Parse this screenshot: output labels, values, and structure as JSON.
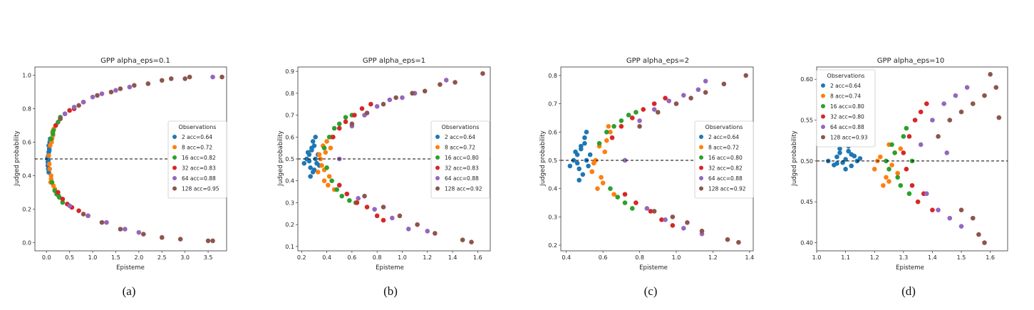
{
  "series_colors": [
    "#1f77b4",
    "#ff7f0e",
    "#2ca02c",
    "#d62728",
    "#9467bd",
    "#8c564b"
  ],
  "chart_data": [
    {
      "type": "scatter",
      "title": "GPP alpha_eps=0.1",
      "xlabel": "Episteme",
      "ylabel": "Judged probability",
      "caption": "(a)",
      "xlim": [
        -0.25,
        3.9
      ],
      "ylim": [
        -0.05,
        1.05
      ],
      "xticks": [
        "0.0",
        "0.5",
        "1.0",
        "1.5",
        "2.0",
        "2.5",
        "3.0",
        "3.5"
      ],
      "yticks": [
        "0.0",
        "0.2",
        "0.4",
        "0.6",
        "0.8",
        "1.0"
      ],
      "reference_line_y": 0.5,
      "grid": false,
      "legend": {
        "title": "Observations",
        "placement": "center-right",
        "entries": [
          "2 acc=0.64",
          "8 acc=0.72",
          "16 acc=0.82",
          "32 acc=0.83",
          "64 acc=0.88",
          "128 acc=0.95"
        ]
      },
      "series": [
        {
          "name": "2 acc=0.64",
          "x": [
            0.02,
            0.03,
            0.04,
            0.05,
            0.03,
            0.06,
            0.04,
            0.05,
            0.07,
            0.03,
            0.05,
            0.08,
            0.04,
            0.06
          ],
          "y": [
            0.5,
            0.48,
            0.52,
            0.54,
            0.46,
            0.56,
            0.44,
            0.58,
            0.6,
            0.51,
            0.42,
            0.62,
            0.49,
            0.55
          ]
        },
        {
          "name": "8 acc=0.72",
          "x": [
            0.05,
            0.08,
            0.1,
            0.12,
            0.09,
            0.14,
            0.07,
            0.11,
            0.15,
            0.13,
            0.06,
            0.1,
            0.16,
            0.18
          ],
          "y": [
            0.52,
            0.58,
            0.4,
            0.62,
            0.36,
            0.64,
            0.44,
            0.6,
            0.34,
            0.66,
            0.47,
            0.38,
            0.68,
            0.32
          ]
        },
        {
          "name": "16 acc=0.82",
          "x": [
            0.1,
            0.15,
            0.2,
            0.25,
            0.3,
            0.12,
            0.18,
            0.22,
            0.28,
            0.35,
            0.14,
            0.26
          ],
          "y": [
            0.62,
            0.67,
            0.7,
            0.72,
            0.75,
            0.36,
            0.31,
            0.29,
            0.27,
            0.24,
            0.65,
            0.28
          ]
        },
        {
          "name": "32 acc=0.83",
          "x": [
            0.2,
            0.3,
            0.4,
            0.5,
            0.6,
            0.25,
            0.35,
            0.45,
            0.55,
            0.7,
            0.8,
            0.9
          ],
          "y": [
            0.7,
            0.74,
            0.77,
            0.79,
            0.8,
            0.3,
            0.26,
            0.23,
            0.21,
            0.19,
            0.84,
            0.16
          ]
        },
        {
          "name": "64 acc=0.88",
          "x": [
            0.4,
            0.6,
            0.8,
            1.0,
            1.2,
            1.5,
            1.8,
            0.5,
            0.9,
            1.3,
            1.7,
            2.0,
            3.6
          ],
          "y": [
            0.77,
            0.81,
            0.84,
            0.87,
            0.89,
            0.91,
            0.93,
            0.22,
            0.16,
            0.12,
            0.08,
            0.06,
            0.99
          ]
        },
        {
          "name": "128 acc=0.95",
          "x": [
            0.3,
            0.7,
            1.1,
            1.4,
            1.6,
            1.9,
            2.2,
            2.5,
            2.7,
            3.0,
            3.1,
            3.8,
            0.8,
            1.2,
            1.6,
            2.1,
            2.5,
            2.9,
            3.5,
            3.6
          ],
          "y": [
            0.74,
            0.82,
            0.88,
            0.9,
            0.92,
            0.94,
            0.95,
            0.97,
            0.98,
            0.98,
            0.99,
            0.99,
            0.17,
            0.12,
            0.08,
            0.05,
            0.03,
            0.02,
            0.01,
            0.01
          ]
        }
      ]
    },
    {
      "type": "scatter",
      "title": "GPP alpha_eps=1",
      "xlabel": "Episteme",
      "ylabel": "Judged probability",
      "caption": "(b)",
      "xlim": [
        0.17,
        1.7
      ],
      "ylim": [
        0.08,
        0.92
      ],
      "xticks": [
        "0.2",
        "0.4",
        "0.6",
        "0.8",
        "1.0",
        "1.2",
        "1.4",
        "1.6"
      ],
      "yticks": [
        "0.1",
        "0.2",
        "0.3",
        "0.4",
        "0.5",
        "0.6",
        "0.7",
        "0.8",
        "0.9"
      ],
      "reference_line_y": 0.5,
      "grid": false,
      "legend": {
        "title": "Observations",
        "placement": "center-right",
        "entries": [
          "2 acc=0.64",
          "8 acc=0.72",
          "16 acc=0.80",
          "32 acc=0.83",
          "64 acc=0.88",
          "128 acc=0.92"
        ]
      },
      "series": [
        {
          "name": "2 acc=0.64",
          "x": [
            0.22,
            0.24,
            0.26,
            0.27,
            0.28,
            0.29,
            0.3,
            0.31,
            0.32,
            0.25,
            0.27,
            0.29,
            0.33,
            0.3,
            0.28,
            0.26,
            0.31,
            0.34
          ],
          "y": [
            0.48,
            0.5,
            0.52,
            0.46,
            0.54,
            0.44,
            0.56,
            0.5,
            0.48,
            0.53,
            0.42,
            0.58,
            0.52,
            0.45,
            0.55,
            0.49,
            0.6,
            0.47
          ]
        },
        {
          "name": "8 acc=0.72",
          "x": [
            0.33,
            0.35,
            0.37,
            0.38,
            0.4,
            0.42,
            0.36,
            0.39,
            0.41,
            0.44,
            0.46,
            0.34,
            0.38,
            0.43
          ],
          "y": [
            0.44,
            0.5,
            0.56,
            0.4,
            0.58,
            0.42,
            0.47,
            0.53,
            0.38,
            0.6,
            0.36,
            0.52,
            0.45,
            0.55
          ]
        },
        {
          "name": "16 acc=0.80",
          "x": [
            0.38,
            0.42,
            0.46,
            0.5,
            0.55,
            0.6,
            0.44,
            0.48,
            0.52,
            0.58,
            0.63,
            0.4
          ],
          "y": [
            0.55,
            0.6,
            0.64,
            0.66,
            0.69,
            0.7,
            0.4,
            0.36,
            0.33,
            0.31,
            0.3,
            0.46
          ]
        },
        {
          "name": "32 acc=0.83",
          "x": [
            0.45,
            0.5,
            0.55,
            0.62,
            0.68,
            0.75,
            0.5,
            0.56,
            0.64,
            0.72,
            0.8,
            0.85
          ],
          "y": [
            0.6,
            0.64,
            0.67,
            0.7,
            0.73,
            0.75,
            0.38,
            0.34,
            0.3,
            0.28,
            0.24,
            0.22
          ]
        },
        {
          "name": "64 acc=0.88",
          "x": [
            0.5,
            0.6,
            0.7,
            0.8,
            0.9,
            1.0,
            1.1,
            0.65,
            0.78,
            0.92,
            1.05,
            1.2,
            1.35
          ],
          "y": [
            0.5,
            0.65,
            0.7,
            0.74,
            0.77,
            0.78,
            0.8,
            0.32,
            0.27,
            0.23,
            0.18,
            0.17,
            0.86
          ]
        },
        {
          "name": "128 acc=0.92",
          "x": [
            0.6,
            0.72,
            0.85,
            0.95,
            1.08,
            1.18,
            1.3,
            1.42,
            1.64,
            0.7,
            0.85,
            0.98,
            1.12,
            1.26,
            1.48,
            1.55
          ],
          "y": [
            0.66,
            0.71,
            0.75,
            0.78,
            0.8,
            0.81,
            0.84,
            0.85,
            0.89,
            0.33,
            0.28,
            0.24,
            0.2,
            0.16,
            0.13,
            0.12
          ]
        }
      ]
    },
    {
      "type": "scatter",
      "title": "GPP alpha_eps=2",
      "xlabel": "Episteme",
      "ylabel": "Judged probability",
      "caption": "(c)",
      "xlim": [
        0.37,
        1.42
      ],
      "ylim": [
        0.18,
        0.83
      ],
      "xticks": [
        "0.4",
        "0.6",
        "0.8",
        "1.0",
        "1.2",
        "1.4"
      ],
      "yticks": [
        "0.2",
        "0.3",
        "0.4",
        "0.5",
        "0.6",
        "0.7",
        "0.8"
      ],
      "reference_line_y": 0.5,
      "grid": false,
      "legend": {
        "title": "Observations",
        "placement": "center-right",
        "entries": [
          "2 acc=0.64",
          "8 acc=0.72",
          "16 acc=0.80",
          "32 acc=0.82",
          "64 acc=0.88",
          "128 acc=0.92"
        ]
      },
      "series": [
        {
          "name": "2 acc=0.64",
          "x": [
            0.42,
            0.44,
            0.46,
            0.47,
            0.48,
            0.49,
            0.5,
            0.51,
            0.52,
            0.45,
            0.47,
            0.5,
            0.53,
            0.54,
            0.48,
            0.46,
            0.51
          ],
          "y": [
            0.48,
            0.5,
            0.52,
            0.47,
            0.54,
            0.45,
            0.56,
            0.5,
            0.48,
            0.53,
            0.43,
            0.58,
            0.52,
            0.46,
            0.55,
            0.49,
            0.6
          ]
        },
        {
          "name": "8 acc=0.72",
          "x": [
            0.54,
            0.56,
            0.58,
            0.6,
            0.62,
            0.57,
            0.61,
            0.64,
            0.66,
            0.55,
            0.59,
            0.63
          ],
          "y": [
            0.46,
            0.5,
            0.55,
            0.42,
            0.57,
            0.4,
            0.53,
            0.6,
            0.38,
            0.49,
            0.44,
            0.62
          ]
        },
        {
          "name": "16 acc=0.80",
          "x": [
            0.58,
            0.62,
            0.66,
            0.7,
            0.74,
            0.78,
            0.64,
            0.68,
            0.72,
            0.76
          ],
          "y": [
            0.56,
            0.6,
            0.62,
            0.64,
            0.66,
            0.67,
            0.4,
            0.37,
            0.35,
            0.33
          ]
        },
        {
          "name": "32 acc=0.82",
          "x": [
            0.65,
            0.7,
            0.76,
            0.82,
            0.88,
            0.94,
            0.72,
            0.78,
            0.86,
            0.92,
            0.98
          ],
          "y": [
            0.58,
            0.62,
            0.65,
            0.68,
            0.7,
            0.72,
            0.38,
            0.35,
            0.32,
            0.29,
            0.27
          ]
        },
        {
          "name": "64 acc=0.88",
          "x": [
            0.72,
            0.8,
            0.88,
            0.96,
            1.04,
            1.12,
            1.16,
            0.84,
            0.94,
            1.04,
            1.14
          ],
          "y": [
            0.5,
            0.64,
            0.68,
            0.71,
            0.73,
            0.75,
            0.78,
            0.33,
            0.29,
            0.26,
            0.24
          ]
        },
        {
          "name": "128 acc=0.92",
          "x": [
            0.8,
            0.9,
            1.0,
            1.08,
            1.16,
            1.26,
            1.38,
            0.88,
            0.98,
            1.06,
            1.14,
            1.28,
            1.34
          ],
          "y": [
            0.62,
            0.67,
            0.7,
            0.72,
            0.74,
            0.77,
            0.8,
            0.32,
            0.3,
            0.28,
            0.25,
            0.22,
            0.21
          ]
        }
      ]
    },
    {
      "type": "scatter",
      "title": "GPP alpha_eps=10",
      "xlabel": "Episteme",
      "ylabel": "Judged probability",
      "caption": "(d)",
      "xlim": [
        1.0,
        1.66
      ],
      "ylim": [
        0.39,
        0.615
      ],
      "xticks": [
        "1.0",
        "1.1",
        "1.2",
        "1.3",
        "1.4",
        "1.5",
        "1.6"
      ],
      "yticks": [
        "0.40",
        "0.45",
        "0.50",
        "0.55",
        "0.60"
      ],
      "reference_line_y": 0.5,
      "grid": false,
      "legend": {
        "title": "Observations",
        "placement": "top-left",
        "entries": [
          "2 acc=0.64",
          "8 acc=0.74",
          "16 acc=0.80",
          "32 acc=0.80",
          "64 acc=0.88",
          "128 acc=0.93"
        ]
      },
      "series": [
        {
          "name": "2 acc=0.64",
          "x": [
            1.04,
            1.06,
            1.07,
            1.08,
            1.09,
            1.1,
            1.11,
            1.12,
            1.13,
            1.08,
            1.1,
            1.12,
            1.14,
            1.07,
            1.11,
            1.15
          ],
          "y": [
            0.5,
            0.495,
            0.505,
            0.51,
            0.498,
            0.502,
            0.512,
            0.494,
            0.506,
            0.515,
            0.49,
            0.508,
            0.5,
            0.497,
            0.518,
            0.503
          ]
        },
        {
          "name": "8 acc=0.74",
          "x": [
            1.2,
            1.22,
            1.24,
            1.25,
            1.26,
            1.23,
            1.27,
            1.28,
            1.21,
            1.25,
            1.29
          ],
          "y": [
            0.49,
            0.505,
            0.48,
            0.52,
            0.495,
            0.47,
            0.51,
            0.485,
            0.5,
            0.475,
            0.515
          ]
        },
        {
          "name": "16 acc=0.80",
          "x": [
            1.24,
            1.26,
            1.28,
            1.3,
            1.32,
            1.27,
            1.29,
            1.31,
            1.33,
            1.25
          ],
          "y": [
            0.5,
            0.52,
            0.48,
            0.53,
            0.46,
            0.51,
            0.47,
            0.54,
            0.5,
            0.49
          ]
        },
        {
          "name": "32 acc=0.80",
          "x": [
            1.3,
            1.32,
            1.34,
            1.36,
            1.38,
            1.33,
            1.35,
            1.37,
            1.4,
            1.31
          ],
          "y": [
            0.51,
            0.53,
            0.55,
            0.56,
            0.57,
            0.47,
            0.45,
            0.46,
            0.44,
            0.49
          ]
        },
        {
          "name": "64 acc=0.88",
          "x": [
            1.36,
            1.4,
            1.44,
            1.48,
            1.52,
            1.42,
            1.46,
            1.5,
            1.38,
            1.45
          ],
          "y": [
            0.52,
            0.55,
            0.57,
            0.58,
            0.59,
            0.44,
            0.43,
            0.42,
            0.46,
            0.51
          ]
        },
        {
          "name": "128 acc=0.93",
          "x": [
            1.42,
            1.46,
            1.5,
            1.54,
            1.58,
            1.6,
            1.62,
            1.5,
            1.54,
            1.56,
            1.58,
            1.63
          ],
          "y": [
            0.53,
            0.55,
            0.56,
            0.57,
            0.58,
            0.606,
            0.59,
            0.44,
            0.43,
            0.41,
            0.4,
            0.553
          ]
        }
      ]
    }
  ]
}
